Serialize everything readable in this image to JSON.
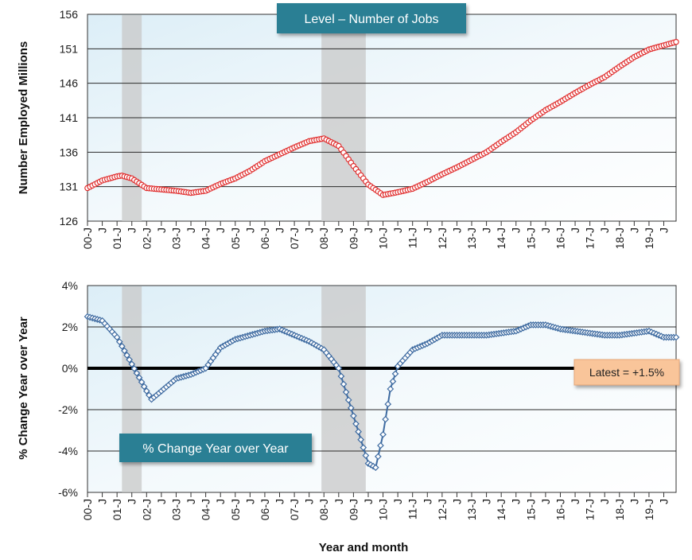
{
  "chart_data": [
    {
      "type": "line",
      "title": "Level – Number of Jobs",
      "ylabel": "Number Employed Millions",
      "ylim": [
        126,
        156
      ],
      "yticks": [
        "126",
        "131",
        "136",
        "141",
        "146",
        "151",
        "156"
      ],
      "x_tick_labels": [
        "00-J",
        "01-J",
        "02-J",
        "03-J",
        "04-J",
        "05-J",
        "06-J",
        "07-J",
        "08-J",
        "09-J",
        "10-J",
        "11-J",
        "12-J",
        "13-J",
        "14-J",
        "15-J",
        "16-J",
        "17-J",
        "18-J",
        "19-J"
      ],
      "x_range": [
        "2000-01",
        "2019-12"
      ],
      "recession_shading": [
        [
          "2001-03",
          "2001-11"
        ],
        [
          "2007-12",
          "2009-06"
        ]
      ],
      "series": [
        {
          "color": "#e03030",
          "marker": "circle",
          "points": [
            [
              "2000-01",
              130.8
            ],
            [
              "2000-07",
              131.9
            ],
            [
              "2001-01",
              132.5
            ],
            [
              "2001-03",
              132.6
            ],
            [
              "2001-07",
              132.2
            ],
            [
              "2002-01",
              130.8
            ],
            [
              "2002-07",
              130.6
            ],
            [
              "2003-01",
              130.4
            ],
            [
              "2003-07",
              130.1
            ],
            [
              "2004-01",
              130.4
            ],
            [
              "2004-07",
              131.4
            ],
            [
              "2005-01",
              132.2
            ],
            [
              "2005-07",
              133.3
            ],
            [
              "2006-01",
              134.7
            ],
            [
              "2006-07",
              135.7
            ],
            [
              "2007-01",
              136.7
            ],
            [
              "2007-07",
              137.6
            ],
            [
              "2008-01",
              138.0
            ],
            [
              "2008-07",
              136.9
            ],
            [
              "2009-01",
              134.0
            ],
            [
              "2009-07",
              131.3
            ],
            [
              "2010-01",
              129.8
            ],
            [
              "2010-07",
              130.2
            ],
            [
              "2011-01",
              130.7
            ],
            [
              "2011-07",
              131.7
            ],
            [
              "2012-01",
              132.8
            ],
            [
              "2012-07",
              133.8
            ],
            [
              "2013-01",
              134.9
            ],
            [
              "2013-07",
              136.0
            ],
            [
              "2014-01",
              137.5
            ],
            [
              "2014-07",
              138.9
            ],
            [
              "2015-01",
              140.6
            ],
            [
              "2015-07",
              142.1
            ],
            [
              "2016-01",
              143.3
            ],
            [
              "2016-07",
              144.6
            ],
            [
              "2017-01",
              145.8
            ],
            [
              "2017-07",
              146.9
            ],
            [
              "2018-01",
              148.4
            ],
            [
              "2018-07",
              149.8
            ],
            [
              "2019-01",
              150.9
            ],
            [
              "2019-07",
              151.5
            ],
            [
              "2019-12",
              152.0
            ]
          ]
        }
      ]
    },
    {
      "type": "line",
      "title": "% Change Year over Year",
      "ylabel": "% Change Year over Year",
      "xlabel": "Year and month",
      "ylim": [
        -6,
        4
      ],
      "yticks": [
        "-6%",
        "-4%",
        "-2%",
        "0%",
        "2%",
        "4%"
      ],
      "x_tick_labels": [
        "00-J",
        "01-J",
        "02-J",
        "03-J",
        "04-J",
        "05-J",
        "06-J",
        "07-J",
        "08-J",
        "09-J",
        "10-J",
        "11-J",
        "12-J",
        "13-J",
        "14-J",
        "15-J",
        "16-J",
        "17-J",
        "18-J",
        "19-J"
      ],
      "x_range": [
        "2000-01",
        "2019-12"
      ],
      "recession_shading": [
        [
          "2001-03",
          "2001-11"
        ],
        [
          "2007-12",
          "2009-06"
        ]
      ],
      "annotation": "Latest = +1.5%",
      "series": [
        {
          "color": "#3d6aa0",
          "marker": "diamond",
          "points": [
            [
              "2000-01",
              2.5
            ],
            [
              "2000-07",
              2.3
            ],
            [
              "2001-01",
              1.5
            ],
            [
              "2001-07",
              0.2
            ],
            [
              "2002-01",
              -1.1
            ],
            [
              "2002-03",
              -1.5
            ],
            [
              "2002-07",
              -1.1
            ],
            [
              "2003-01",
              -0.5
            ],
            [
              "2003-07",
              -0.3
            ],
            [
              "2004-01",
              0.0
            ],
            [
              "2004-07",
              1.0
            ],
            [
              "2005-01",
              1.4
            ],
            [
              "2005-07",
              1.6
            ],
            [
              "2006-01",
              1.8
            ],
            [
              "2006-07",
              1.9
            ],
            [
              "2007-01",
              1.6
            ],
            [
              "2007-07",
              1.3
            ],
            [
              "2008-01",
              0.9
            ],
            [
              "2008-07",
              0.0
            ],
            [
              "2009-01",
              -2.3
            ],
            [
              "2009-07",
              -4.6
            ],
            [
              "2009-10",
              -4.8
            ],
            [
              "2010-01",
              -3.2
            ],
            [
              "2010-04",
              -1.0
            ],
            [
              "2010-07",
              0.1
            ],
            [
              "2011-01",
              0.9
            ],
            [
              "2011-07",
              1.2
            ],
            [
              "2012-01",
              1.6
            ],
            [
              "2012-07",
              1.6
            ],
            [
              "2013-01",
              1.6
            ],
            [
              "2013-07",
              1.6
            ],
            [
              "2014-01",
              1.7
            ],
            [
              "2014-07",
              1.8
            ],
            [
              "2015-01",
              2.1
            ],
            [
              "2015-07",
              2.1
            ],
            [
              "2016-01",
              1.9
            ],
            [
              "2016-07",
              1.8
            ],
            [
              "2017-01",
              1.7
            ],
            [
              "2017-07",
              1.6
            ],
            [
              "2018-01",
              1.6
            ],
            [
              "2018-07",
              1.7
            ],
            [
              "2019-01",
              1.8
            ],
            [
              "2019-07",
              1.5
            ],
            [
              "2019-12",
              1.5
            ]
          ]
        }
      ]
    }
  ]
}
